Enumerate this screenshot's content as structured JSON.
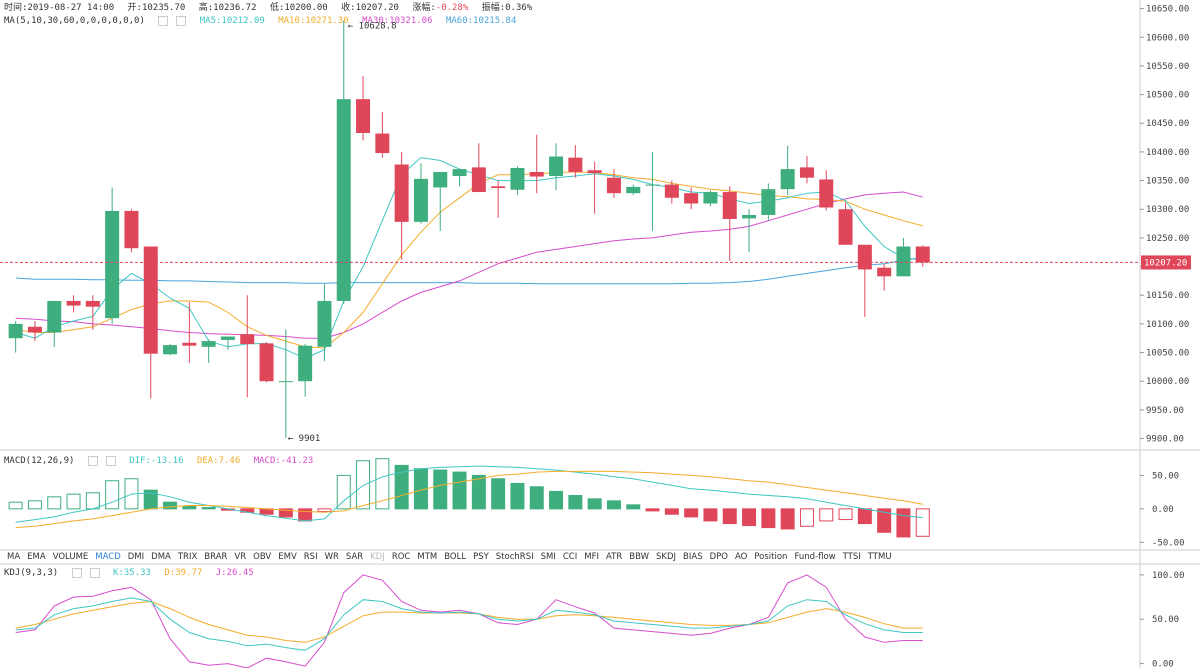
{
  "header": {
    "time_label": "时间:2019-08-27 14:00",
    "open_label": "开:10235.70",
    "high_label": "高:10236.72",
    "low_label": "低:10200.00",
    "close_label": "收:10207.20",
    "change_prefix": "涨幅:",
    "change_value": "-0.28%",
    "amp_label": "振幅:0.36%"
  },
  "ma_legend": {
    "title": "MA(5,10,30,60,0,0,0,0,0,0)",
    "ma5": "MA5:10212.09",
    "ma10": "MA10:10271.30",
    "ma30": "MA30:10321.06",
    "ma60": "MA60:10215.84"
  },
  "macd_legend": {
    "title": "MACD(12,26,9)",
    "dif": "DIF:-13.16",
    "dea": "DEA:7.46",
    "macd": "MACD:-41.23"
  },
  "kdj_legend": {
    "title": "KDJ(9,3,3)",
    "k": "K:35.33",
    "d": "D:39.77",
    "j": "J:26.45"
  },
  "indicator_tabs": [
    "MA",
    "EMA",
    "VOLUME",
    "MACD",
    "DMI",
    "DMA",
    "TRIX",
    "BRAR",
    "VR",
    "OBV",
    "EMV",
    "RSI",
    "WR",
    "SAR",
    "KDJ",
    "ROC",
    "MTM",
    "BOLL",
    "PSY",
    "StochRSI",
    "SMI",
    "CCI",
    "MFI",
    "ATR",
    "BBW",
    "SKDJ",
    "BIAS",
    "DPO",
    "AO",
    "Position",
    "Fund-flow",
    "TTSI",
    "TTMU"
  ],
  "active_tab": "MACD",
  "disabled_tab": "KDJ",
  "colors": {
    "up": "#3fae7f",
    "down": "#e0465a",
    "ma5": "#3ec7c3",
    "ma10": "#f3ad2a",
    "ma30": "#d84ccd",
    "ma60": "#4aa5dd",
    "price_line": "#e0465a"
  },
  "chart_data": {
    "type": "candlestick",
    "price_axis": {
      "ticks": [
        9900,
        9950,
        10000,
        10050,
        10100,
        10150,
        10200,
        10250,
        10300,
        10350,
        10400,
        10450,
        10500,
        10550,
        10600,
        10650
      ],
      "tick_labels": [
        "9900.00",
        "9950.00",
        "10000.00",
        "10050.00",
        "10100.00",
        "10150.00",
        "10200.00",
        "10250.00",
        "10300.00",
        "10350.00",
        "10400.00",
        "10450.00",
        "10500.00",
        "10550.00",
        "10600.00",
        "10650.00"
      ],
      "ylim": [
        9880,
        10665
      ]
    },
    "last_price": 10207.2,
    "last_price_label": "10207.20",
    "low_marker_label": "9901",
    "high_marker_label": "10628.8",
    "candles": [
      {
        "o": 10075,
        "h": 10105,
        "l": 10050,
        "c": 10100
      },
      {
        "o": 10095,
        "h": 10105,
        "l": 10070,
        "c": 10085
      },
      {
        "o": 10085,
        "h": 10140,
        "l": 10060,
        "c": 10140
      },
      {
        "o": 10140,
        "h": 10150,
        "l": 10120,
        "c": 10132
      },
      {
        "o": 10140,
        "h": 10150,
        "l": 10090,
        "c": 10130
      },
      {
        "o": 10110,
        "h": 10338,
        "l": 10100,
        "c": 10297
      },
      {
        "o": 10297,
        "h": 10300,
        "l": 10225,
        "c": 10232
      },
      {
        "o": 10235,
        "h": 10235,
        "l": 9970,
        "c": 10048
      },
      {
        "o": 10047,
        "h": 10065,
        "l": 10045,
        "c": 10063
      },
      {
        "o": 10067,
        "h": 10138,
        "l": 10032,
        "c": 10062
      },
      {
        "o": 10060,
        "h": 10073,
        "l": 10032,
        "c": 10070
      },
      {
        "o": 10072,
        "h": 10075,
        "l": 10055,
        "c": 10078
      },
      {
        "o": 10082,
        "h": 10150,
        "l": 9972,
        "c": 10065
      },
      {
        "o": 10066,
        "h": 10068,
        "l": 9998,
        "c": 10000
      },
      {
        "o": 10000,
        "h": 10090,
        "l": 9901,
        "c": 10000
      },
      {
        "o": 10000,
        "h": 10065,
        "l": 9973,
        "c": 10062
      },
      {
        "o": 10060,
        "h": 10170,
        "l": 10035,
        "c": 10140
      },
      {
        "o": 10140,
        "h": 10629,
        "l": 10135,
        "c": 10492
      },
      {
        "o": 10492,
        "h": 10532,
        "l": 10420,
        "c": 10433
      },
      {
        "o": 10432,
        "h": 10470,
        "l": 10390,
        "c": 10398
      },
      {
        "o": 10378,
        "h": 10400,
        "l": 10212,
        "c": 10278
      },
      {
        "o": 10278,
        "h": 10380,
        "l": 10275,
        "c": 10353
      },
      {
        "o": 10338,
        "h": 10365,
        "l": 10262,
        "c": 10365
      },
      {
        "o": 10358,
        "h": 10368,
        "l": 10340,
        "c": 10370
      },
      {
        "o": 10373,
        "h": 10415,
        "l": 10330,
        "c": 10330
      },
      {
        "o": 10340,
        "h": 10350,
        "l": 10285,
        "c": 10337
      },
      {
        "o": 10334,
        "h": 10375,
        "l": 10325,
        "c": 10372
      },
      {
        "o": 10365,
        "h": 10430,
        "l": 10328,
        "c": 10357
      },
      {
        "o": 10358,
        "h": 10415,
        "l": 10333,
        "c": 10392
      },
      {
        "o": 10390,
        "h": 10412,
        "l": 10355,
        "c": 10365
      },
      {
        "o": 10368,
        "h": 10383,
        "l": 10292,
        "c": 10363
      },
      {
        "o": 10355,
        "h": 10370,
        "l": 10320,
        "c": 10328
      },
      {
        "o": 10328,
        "h": 10343,
        "l": 10325,
        "c": 10339
      },
      {
        "o": 10343,
        "h": 10400,
        "l": 10262,
        "c": 10343
      },
      {
        "o": 10343,
        "h": 10350,
        "l": 10310,
        "c": 10320
      },
      {
        "o": 10328,
        "h": 10338,
        "l": 10300,
        "c": 10310
      },
      {
        "o": 10310,
        "h": 10333,
        "l": 10305,
        "c": 10330
      },
      {
        "o": 10330,
        "h": 10340,
        "l": 10210,
        "c": 10283
      },
      {
        "o": 10284,
        "h": 10300,
        "l": 10225,
        "c": 10290
      },
      {
        "o": 10290,
        "h": 10345,
        "l": 10280,
        "c": 10335
      },
      {
        "o": 10335,
        "h": 10411,
        "l": 10325,
        "c": 10370
      },
      {
        "o": 10373,
        "h": 10393,
        "l": 10345,
        "c": 10355
      },
      {
        "o": 10352,
        "h": 10368,
        "l": 10298,
        "c": 10303
      },
      {
        "o": 10300,
        "h": 10312,
        "l": 10242,
        "c": 10238
      },
      {
        "o": 10238,
        "h": 10238,
        "l": 10112,
        "c": 10195
      },
      {
        "o": 10198,
        "h": 10205,
        "l": 10158,
        "c": 10183
      },
      {
        "o": 10183,
        "h": 10250,
        "l": 10183,
        "c": 10235
      },
      {
        "o": 10235,
        "h": 10237,
        "l": 10200,
        "c": 10207
      }
    ],
    "ma5": [
      10085,
      10075,
      10095,
      10105,
      10113,
      10160,
      10188,
      10170,
      10145,
      10127,
      10070,
      10060,
      10065,
      10066,
      10055,
      10040,
      10055,
      10140,
      10200,
      10280,
      10360,
      10390,
      10385,
      10370,
      10360,
      10350,
      10350,
      10350,
      10355,
      10358,
      10362,
      10358,
      10352,
      10343,
      10338,
      10330,
      10328,
      10318,
      10310,
      10314,
      10320,
      10328,
      10330,
      10315,
      10270,
      10235,
      10215,
      10212
    ],
    "ma10": [
      10090,
      10085,
      10085,
      10090,
      10095,
      10110,
      10125,
      10135,
      10140,
      10140,
      10138,
      10120,
      10095,
      10080,
      10070,
      10060,
      10058,
      10085,
      10120,
      10170,
      10220,
      10260,
      10295,
      10320,
      10345,
      10360,
      10360,
      10362,
      10364,
      10365,
      10364,
      10360,
      10355,
      10352,
      10345,
      10340,
      10335,
      10332,
      10328,
      10324,
      10322,
      10318,
      10317,
      10314,
      10300,
      10290,
      10280,
      10271
    ],
    "ma30": [
      10110,
      10108,
      10105,
      10104,
      10100,
      10098,
      10095,
      10092,
      10088,
      10085,
      10083,
      10082,
      10081,
      10080,
      10078,
      10075,
      10075,
      10085,
      10100,
      10120,
      10140,
      10155,
      10165,
      10175,
      10190,
      10205,
      10215,
      10225,
      10230,
      10235,
      10240,
      10245,
      10248,
      10250,
      10255,
      10260,
      10262,
      10265,
      10270,
      10280,
      10290,
      10300,
      10310,
      10318,
      10325,
      10328,
      10330,
      10321
    ],
    "ma60": [
      10180,
      10178,
      10178,
      10178,
      10177,
      10177,
      10176,
      10176,
      10175,
      10175,
      10174,
      10173,
      10172,
      10172,
      10172,
      10171,
      10171,
      10172,
      10172,
      10172,
      10172,
      10172,
      10172,
      10172,
      10171,
      10171,
      10171,
      10170,
      10170,
      10170,
      10170,
      10170,
      10170,
      10170,
      10170,
      10171,
      10171,
      10172,
      10174,
      10178,
      10183,
      10188,
      10193,
      10198,
      10202,
      10205,
      10211,
      10216
    ],
    "macd_axis": {
      "ticks": [
        50,
        0,
        -50
      ],
      "tick_labels": [
        "50.00",
        "0.00",
        "-50.00"
      ],
      "ylim": [
        -60,
        85
      ]
    },
    "macd_hist": [
      10,
      12,
      18,
      22,
      24,
      42,
      45,
      28,
      10,
      4,
      2,
      -2,
      -5,
      -8,
      -12,
      -18,
      -4,
      50,
      72,
      75,
      65,
      60,
      58,
      55,
      50,
      45,
      38,
      33,
      26,
      20,
      15,
      12,
      6,
      -3,
      -8,
      -12,
      -18,
      -22,
      -25,
      -28,
      -30,
      -26,
      -18,
      -16,
      -22,
      -35,
      -42,
      -41
    ],
    "macd_dif": [
      -20,
      -16,
      -12,
      -5,
      0,
      10,
      22,
      24,
      18,
      10,
      5,
      0,
      -5,
      -10,
      -14,
      -18,
      -15,
      12,
      35,
      48,
      55,
      60,
      62,
      63,
      64,
      63,
      62,
      60,
      58,
      55,
      52,
      48,
      45,
      40,
      35,
      30,
      28,
      25,
      22,
      20,
      18,
      15,
      10,
      5,
      0,
      -5,
      -10,
      -13
    ],
    "macd_dea": [
      -28,
      -26,
      -22,
      -18,
      -15,
      -10,
      -5,
      0,
      3,
      5,
      5,
      4,
      2,
      0,
      -2,
      -4,
      -5,
      -3,
      5,
      12,
      20,
      28,
      35,
      40,
      45,
      50,
      52,
      55,
      56,
      56,
      56,
      56,
      55,
      54,
      52,
      50,
      48,
      45,
      42,
      40,
      36,
      32,
      28,
      24,
      20,
      16,
      12,
      7
    ],
    "kdj_axis": {
      "ticks": [
        100,
        50,
        0
      ],
      "tick_labels": [
        "100.00",
        "50.00",
        "0.00"
      ],
      "ylim": [
        -5,
        110
      ]
    },
    "kdj_k": [
      38,
      40,
      55,
      62,
      65,
      70,
      74,
      70,
      50,
      35,
      28,
      25,
      20,
      22,
      18,
      15,
      28,
      55,
      72,
      70,
      62,
      58,
      57,
      58,
      56,
      50,
      48,
      50,
      60,
      58,
      55,
      48,
      46,
      44,
      42,
      40,
      40,
      42,
      44,
      48,
      65,
      72,
      70,
      55,
      45,
      38,
      35,
      35
    ],
    "kdj_d": [
      40,
      44,
      50,
      56,
      60,
      64,
      68,
      70,
      62,
      52,
      44,
      38,
      32,
      30,
      26,
      24,
      30,
      42,
      54,
      58,
      58,
      57,
      57,
      57,
      56,
      52,
      50,
      50,
      54,
      55,
      54,
      52,
      50,
      48,
      46,
      44,
      43,
      43,
      44,
      46,
      52,
      58,
      62,
      58,
      52,
      45,
      40,
      40
    ],
    "kdj_j": [
      35,
      38,
      65,
      75,
      76,
      82,
      86,
      72,
      28,
      2,
      -2,
      0,
      -5,
      6,
      2,
      -3,
      24,
      80,
      100,
      94,
      70,
      60,
      58,
      60,
      56,
      46,
      44,
      50,
      72,
      64,
      57,
      40,
      38,
      36,
      34,
      32,
      34,
      40,
      44,
      52,
      91,
      100,
      86,
      50,
      30,
      24,
      26,
      26
    ]
  }
}
